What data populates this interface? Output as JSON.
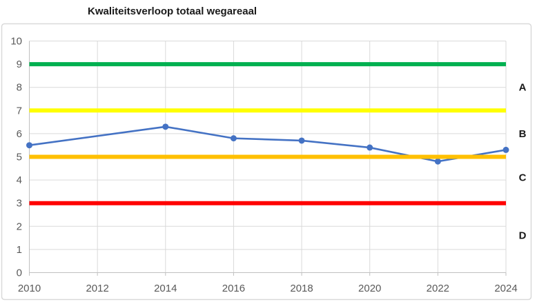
{
  "chart_data": {
    "type": "line",
    "title": "Kwaliteitsverloop totaal wegareaal",
    "x": [
      2010,
      2014,
      2016,
      2018,
      2020,
      2022,
      2024
    ],
    "series": [
      {
        "name": "kwaliteit-totaal-wegareaal",
        "color": "#4472C4",
        "marker": "circle",
        "values": [
          5.5,
          6.3,
          5.8,
          5.7,
          5.4,
          4.8,
          5.3
        ]
      }
    ],
    "threshold_lines": [
      {
        "name": "green-line",
        "value": 9,
        "color": "#00B050"
      },
      {
        "name": "yellow-line",
        "value": 7,
        "color": "#FFFF00"
      },
      {
        "name": "orange-line",
        "value": 5,
        "color": "#FFC000"
      },
      {
        "name": "red-line",
        "value": 3,
        "color": "#FF0000"
      }
    ],
    "band_labels": [
      {
        "label": "A",
        "at_value": 8.0
      },
      {
        "label": "B",
        "at_value": 6.0
      },
      {
        "label": "C",
        "at_value": 4.1
      },
      {
        "label": "D",
        "at_value": 1.6
      }
    ],
    "xlim": [
      2010,
      2024
    ],
    "ylim": [
      0,
      10
    ],
    "xticks": [
      2010,
      2012,
      2014,
      2016,
      2018,
      2020,
      2022,
      2024
    ],
    "yticks": [
      0,
      1,
      2,
      3,
      4,
      5,
      6,
      7,
      8,
      9,
      10
    ],
    "grid": true,
    "legend": "none"
  },
  "colors": {
    "background": "#FFFFFF",
    "chart_border": "#D9D9D9",
    "grid": "#D9D9D9",
    "axis": "#BFBFBF",
    "tick_label": "#595959",
    "title": "#1A1A1A",
    "band_label": "#1A1A1A"
  }
}
